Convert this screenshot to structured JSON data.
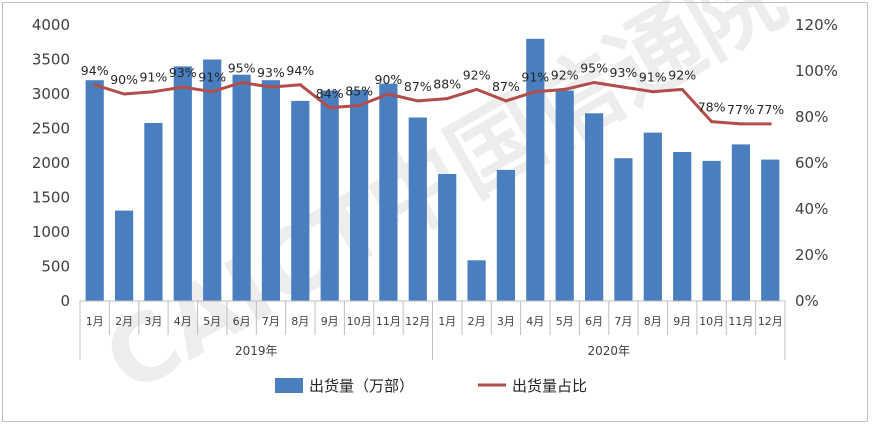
{
  "chart_data": {
    "type": "bar",
    "categories": [
      "1月",
      "2月",
      "3月",
      "4月",
      "5月",
      "6月",
      "7月",
      "8月",
      "9月",
      "10月",
      "11月",
      "12月",
      "1月",
      "2月",
      "3月",
      "4月",
      "5月",
      "6月",
      "7月",
      "8月",
      "9月",
      "10月",
      "11月",
      "12月"
    ],
    "year_groups": [
      {
        "label": "2019年",
        "count": 12
      },
      {
        "label": "2020年",
        "count": 12
      }
    ],
    "series": [
      {
        "name": "出货量（万部）",
        "type": "bar",
        "axis": "left",
        "color": "#4a7fbf",
        "values": [
          3200,
          1310,
          2580,
          3400,
          3500,
          3280,
          3200,
          2900,
          3050,
          3060,
          3150,
          2660,
          1840,
          590,
          1900,
          3800,
          3050,
          2720,
          2070,
          2440,
          2160,
          2030,
          2270,
          2050
        ]
      },
      {
        "name": "出货量占比",
        "type": "line",
        "axis": "right",
        "color": "#b24d4a",
        "values": [
          94,
          90,
          91,
          93,
          91,
          95,
          93,
          94,
          84,
          85,
          90,
          87,
          88,
          92,
          87,
          91,
          92,
          95,
          93,
          91,
          92,
          78,
          77,
          77
        ]
      }
    ],
    "left_axis": {
      "min": 0,
      "max": 4000,
      "step": 500,
      "ticks": [
        "0",
        "500",
        "1000",
        "1500",
        "2000",
        "2500",
        "3000",
        "3500",
        "4000"
      ]
    },
    "right_axis": {
      "min": 0,
      "max": 120,
      "step": 20,
      "ticks": [
        "0%",
        "20%",
        "40%",
        "60%",
        "80%",
        "100%",
        "120%"
      ]
    },
    "line_labels": [
      "94%",
      "90%",
      "91%",
      "93%",
      "91%",
      "95%",
      "93%",
      "94%",
      "84%",
      "85%",
      "90%",
      "87%",
      "88%",
      "92%",
      "87%",
      "91%",
      "92%",
      "95%",
      "93%",
      "91%",
      "92%",
      "78%",
      "77%",
      "77%"
    ],
    "grid": false,
    "legend_position": "bottom"
  },
  "watermark": {
    "text": "CAICT中国信通院",
    "color": "#c8c8c8"
  }
}
